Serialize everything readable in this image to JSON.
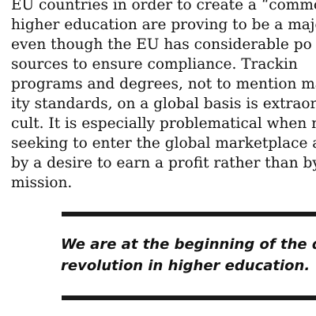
{
  "article": {
    "paragraph_lines": [
      "EU countries in order to create a “common",
      "higher education are proving to be a major",
      "even though the EU has considerable po",
      "sources to ensure compliance. Trackin",
      "programs and degrees, not to mention main",
      "ity standards, on a global basis is extraord",
      "cult. It is especially problematical when m",
      "seeking to enter the global marketplace a",
      "by a desire to earn a profit rather than by an",
      "mission."
    ]
  },
  "pull_quote": {
    "lines": [
      "We are at the beginning of the dis",
      "revolution in higher education."
    ]
  }
}
